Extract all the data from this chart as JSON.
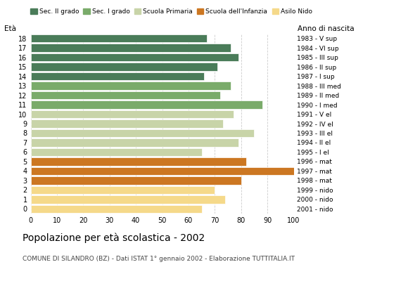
{
  "ages": [
    18,
    17,
    16,
    15,
    14,
    13,
    12,
    11,
    10,
    9,
    8,
    7,
    6,
    5,
    4,
    3,
    2,
    1,
    0
  ],
  "values": [
    67,
    76,
    79,
    71,
    66,
    76,
    72,
    88,
    77,
    73,
    85,
    79,
    65,
    82,
    100,
    80,
    70,
    74,
    65
  ],
  "right_labels": [
    "1983 - V sup",
    "1984 - VI sup",
    "1985 - III sup",
    "1986 - II sup",
    "1987 - I sup",
    "1988 - III med",
    "1989 - II med",
    "1990 - I med",
    "1991 - V el",
    "1992 - IV el",
    "1993 - III el",
    "1994 - II el",
    "1995 - I el",
    "1996 - mat",
    "1997 - mat",
    "1998 - mat",
    "1999 - nido",
    "2000 - nido",
    "2001 - nido"
  ],
  "bar_colors": [
    "#4a7c59",
    "#4a7c59",
    "#4a7c59",
    "#4a7c59",
    "#4a7c59",
    "#7aab6a",
    "#7aab6a",
    "#7aab6a",
    "#c8d4a8",
    "#c8d4a8",
    "#c8d4a8",
    "#c8d4a8",
    "#c8d4a8",
    "#cc7722",
    "#cc7722",
    "#cc7722",
    "#f5d98a",
    "#f5d98a",
    "#f5d98a"
  ],
  "legend_labels": [
    "Sec. II grado",
    "Sec. I grado",
    "Scuola Primaria",
    "Scuola dell'Infanzia",
    "Asilo Nido"
  ],
  "legend_colors": [
    "#4a7c59",
    "#7aab6a",
    "#c8d4a8",
    "#cc7722",
    "#f5d98a"
  ],
  "ylabel_left": "Età",
  "right_axis_label": "Anno di nascita",
  "title": "Popolazione per età scolastica - 2002",
  "subtitle": "COMUNE DI SILANDRO (BZ) - Dati ISTAT 1° gennaio 2002 - Elaborazione TUTTITALIA.IT",
  "xlim": [
    0,
    100
  ],
  "xticks": [
    0,
    10,
    20,
    30,
    40,
    50,
    60,
    70,
    80,
    90,
    100
  ],
  "background_color": "#ffffff",
  "grid_color": "#aaaaaa",
  "bar_height": 0.85
}
